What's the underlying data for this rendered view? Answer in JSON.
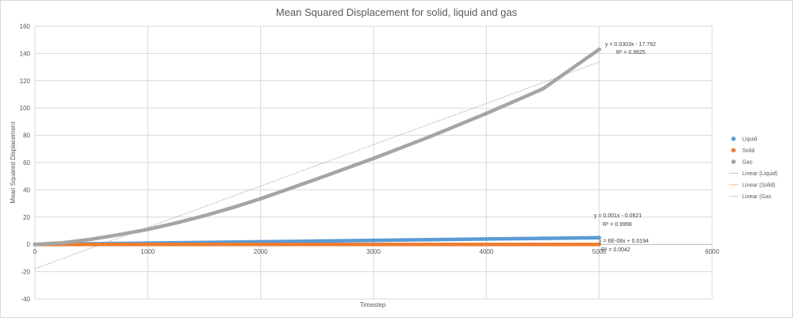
{
  "chart_data": {
    "type": "scatter",
    "title": "Mean Squared Displacement for solid, liquid and gas",
    "xlabel": "Timestep",
    "ylabel": "Mean Squared Displacement",
    "xlim": [
      0,
      6000
    ],
    "ylim": [
      -40,
      160
    ],
    "x_ticks": [
      0,
      1000,
      2000,
      3000,
      4000,
      5000,
      6000
    ],
    "y_ticks": [
      -40,
      -20,
      0,
      20,
      40,
      60,
      80,
      100,
      120,
      140,
      160
    ],
    "grid": true,
    "legend_position": "right",
    "series": [
      {
        "name": "Liquid",
        "color": "#5b9bd5",
        "x": [
          0,
          500,
          1000,
          1500,
          2000,
          2500,
          3000,
          3500,
          4000,
          4500,
          5000
        ],
        "y": [
          0,
          0.44,
          0.94,
          1.44,
          1.94,
          2.44,
          2.94,
          3.44,
          3.94,
          4.44,
          4.94
        ]
      },
      {
        "name": "Solid",
        "color": "#ed7d31",
        "x": [
          0,
          500,
          1000,
          1500,
          2000,
          2500,
          3000,
          3500,
          4000,
          4500,
          5000
        ],
        "y": [
          0.02,
          0.02,
          0.02,
          0.02,
          0.02,
          0.02,
          0.02,
          0.02,
          0.02,
          0.02,
          0.02
        ]
      },
      {
        "name": "Gas",
        "color": "#a5a5a5",
        "x": [
          0,
          250,
          500,
          750,
          1000,
          1250,
          1500,
          1750,
          2000,
          2500,
          3000,
          3500,
          4000,
          4500,
          5000
        ],
        "y": [
          0,
          1.2,
          3.8,
          7.2,
          11,
          15.7,
          21,
          27,
          33.5,
          48,
          63,
          79,
          96,
          114,
          143
        ]
      }
    ],
    "trendlines": [
      {
        "name": "Linear (Liquid)",
        "color": "#5b9bd5",
        "slope": 0.001,
        "intercept": -0.0621,
        "x_range": [
          0,
          5000
        ],
        "equation": "y = 0.001x - 0.0621",
        "r2": "R² = 0.9998"
      },
      {
        "name": "Linear (Solid)",
        "color": "#ed7d31",
        "slope": 6e-08,
        "intercept": 0.0194,
        "x_range": [
          0,
          5000
        ],
        "equation": "y = 6E-08x + 0.0194",
        "r2": "R² = 0.0042"
      },
      {
        "name": "Linear (Gas)",
        "color": "#a5a5a5",
        "slope": 0.0303,
        "intercept": -17.792,
        "x_range": [
          0,
          5000
        ],
        "equation": "y = 0.0303x - 17.792",
        "r2": "R² = 0.9825"
      }
    ]
  },
  "legend": {
    "items": [
      {
        "label": "Liquid",
        "kind": "marker",
        "color": "#5b9bd5"
      },
      {
        "label": "Solid",
        "kind": "marker",
        "color": "#ed7d31"
      },
      {
        "label": "Gas",
        "kind": "marker",
        "color": "#a5a5a5"
      },
      {
        "label": "Linear (Liquid)",
        "kind": "line",
        "color": "#5b9bd5"
      },
      {
        "label": "Linear (Solid)",
        "kind": "line",
        "color": "#ed7d31"
      },
      {
        "label": "Linear (Gas",
        "kind": "line",
        "color": "#a5a5a5"
      }
    ]
  }
}
